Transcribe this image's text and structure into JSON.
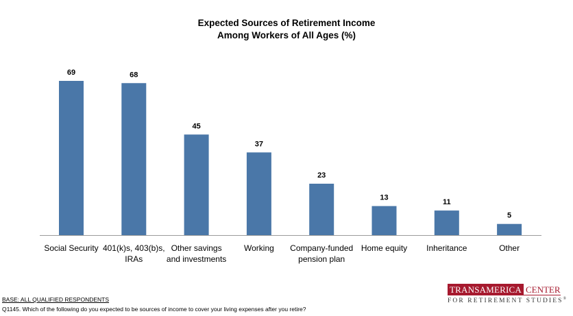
{
  "chart_data": {
    "type": "bar",
    "title_line1": "Expected Sources of Retirement Income",
    "title_line2": "Among Workers of All Ages (%)",
    "categories": [
      [
        "Social Security"
      ],
      [
        "401(k)s, 403(b)s,",
        "IRAs"
      ],
      [
        "Other savings",
        "and investments"
      ],
      [
        "Working"
      ],
      [
        "Company-funded",
        "pension plan"
      ],
      [
        "Home equity"
      ],
      [
        "Inheritance"
      ],
      [
        "Other"
      ]
    ],
    "values": [
      69,
      68,
      45,
      37,
      23,
      13,
      11,
      5
    ],
    "bar_color": "#4a77a8",
    "ylim": [
      0,
      100
    ],
    "grid": false,
    "legend": "none"
  },
  "footer": {
    "base": "BASE: ALL QUALIFIED RESPONDENTS",
    "question": "Q1145. Which of the following do you expected to be sources of income to cover your living expenses after you retire?"
  },
  "logo": {
    "name_part1": "TRANSAMERICA",
    "name_part2": "CENTER",
    "subline": "FOR RETIREMENT STUDIES",
    "trademark": "®",
    "brand_color": "#a6192e"
  }
}
